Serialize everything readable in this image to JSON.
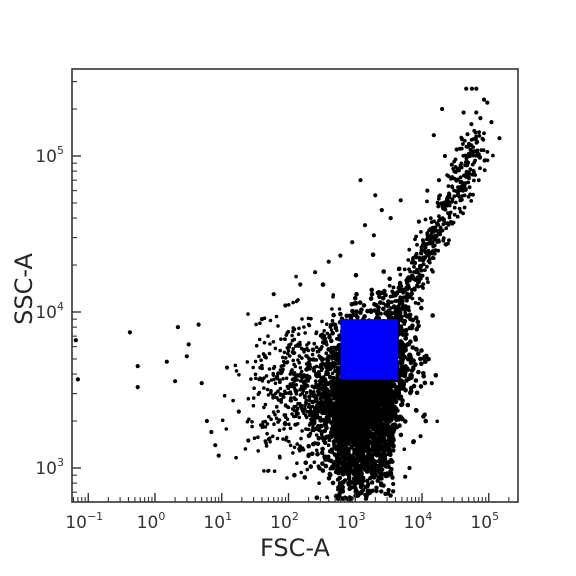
{
  "chart_data": {
    "type": "scatter",
    "title": "",
    "xlabel": "FSC-A",
    "ylabel": "SSC-A",
    "xscale": "log",
    "yscale": "log",
    "xlim": [
      0.06,
      300000
    ],
    "ylim": [
      600,
      350000
    ],
    "x_ticks": [
      {
        "value": 0.1,
        "base": "10",
        "exp": "−1"
      },
      {
        "value": 1,
        "base": "10",
        "exp": "0"
      },
      {
        "value": 10,
        "base": "10",
        "exp": "1"
      },
      {
        "value": 100,
        "base": "10",
        "exp": "2"
      },
      {
        "value": 1000,
        "base": "10",
        "exp": "3"
      },
      {
        "value": 10000,
        "base": "10",
        "exp": "4"
      },
      {
        "value": 100000,
        "base": "10",
        "exp": "5"
      }
    ],
    "y_ticks": [
      {
        "value": 1000,
        "base": "10",
        "exp": "3"
      },
      {
        "value": 10000,
        "base": "10",
        "exp": "4"
      },
      {
        "value": 100000,
        "base": "10",
        "exp": "5"
      }
    ],
    "grid": false,
    "legend": "none",
    "series": [
      {
        "marker_color": "#000000",
        "points": [
          [
            0.055,
            5400
          ],
          [
            0.065,
            6600
          ],
          [
            0.07,
            3700
          ],
          [
            0.42,
            7400
          ],
          [
            0.55,
            4500
          ],
          [
            0.55,
            3300
          ],
          [
            1.5,
            4800
          ],
          [
            2.0,
            3600
          ],
          [
            2.2,
            8000
          ],
          [
            3.0,
            5200
          ],
          [
            3.2,
            6200
          ],
          [
            4.5,
            8300
          ],
          [
            5.0,
            3500
          ],
          [
            6.0,
            2000
          ],
          [
            7.0,
            1700
          ],
          [
            8.0,
            1400
          ],
          [
            9.0,
            1200
          ],
          [
            12,
            4400
          ],
          [
            18,
            2300
          ],
          [
            25,
            1500
          ],
          [
            40,
            9000
          ],
          [
            60,
            13000
          ],
          [
            90,
            11000
          ],
          [
            150,
            15000
          ],
          [
            250,
            18000
          ],
          [
            400,
            21000
          ],
          [
            600,
            23000
          ],
          [
            900,
            28000
          ],
          [
            1400,
            36000
          ],
          [
            1900,
            31000
          ],
          [
            2500,
            45000
          ],
          [
            3400,
            40000
          ],
          [
            4800,
            52000
          ],
          [
            1200,
            70000
          ],
          [
            2000,
            56000
          ],
          [
            9000,
            38000
          ],
          [
            12000,
            60000
          ],
          [
            18000,
            70000
          ],
          [
            22000,
            100000
          ],
          [
            28000,
            88000
          ],
          [
            33000,
            110000
          ],
          [
            40000,
            128000
          ],
          [
            48000,
            138000
          ],
          [
            55000,
            160000
          ],
          [
            65000,
            190000
          ],
          [
            75000,
            175000
          ],
          [
            85000,
            230000
          ],
          [
            95000,
            220000
          ],
          [
            110000,
            165000
          ],
          [
            15000,
            136000
          ],
          [
            20000,
            200000
          ],
          [
            46000,
            270000
          ],
          [
            56000,
            270000
          ],
          [
            65000,
            270000
          ],
          [
            42000,
            190000
          ],
          [
            145000,
            130000
          ],
          [
            7000,
            3800
          ],
          [
            14000,
            3500
          ],
          [
            11000,
            2200
          ],
          [
            9500,
            1600
          ],
          [
            6500,
            1000
          ],
          [
            5600,
            880
          ],
          [
            3700,
            790
          ],
          [
            2300,
            860
          ],
          [
            900,
            950
          ]
        ]
      }
    ],
    "annotations": [
      {
        "type": "gate-rectangle",
        "color": "#0000ff",
        "x": [
          600,
          4400
        ],
        "y": [
          3700,
          9000
        ]
      }
    ]
  }
}
